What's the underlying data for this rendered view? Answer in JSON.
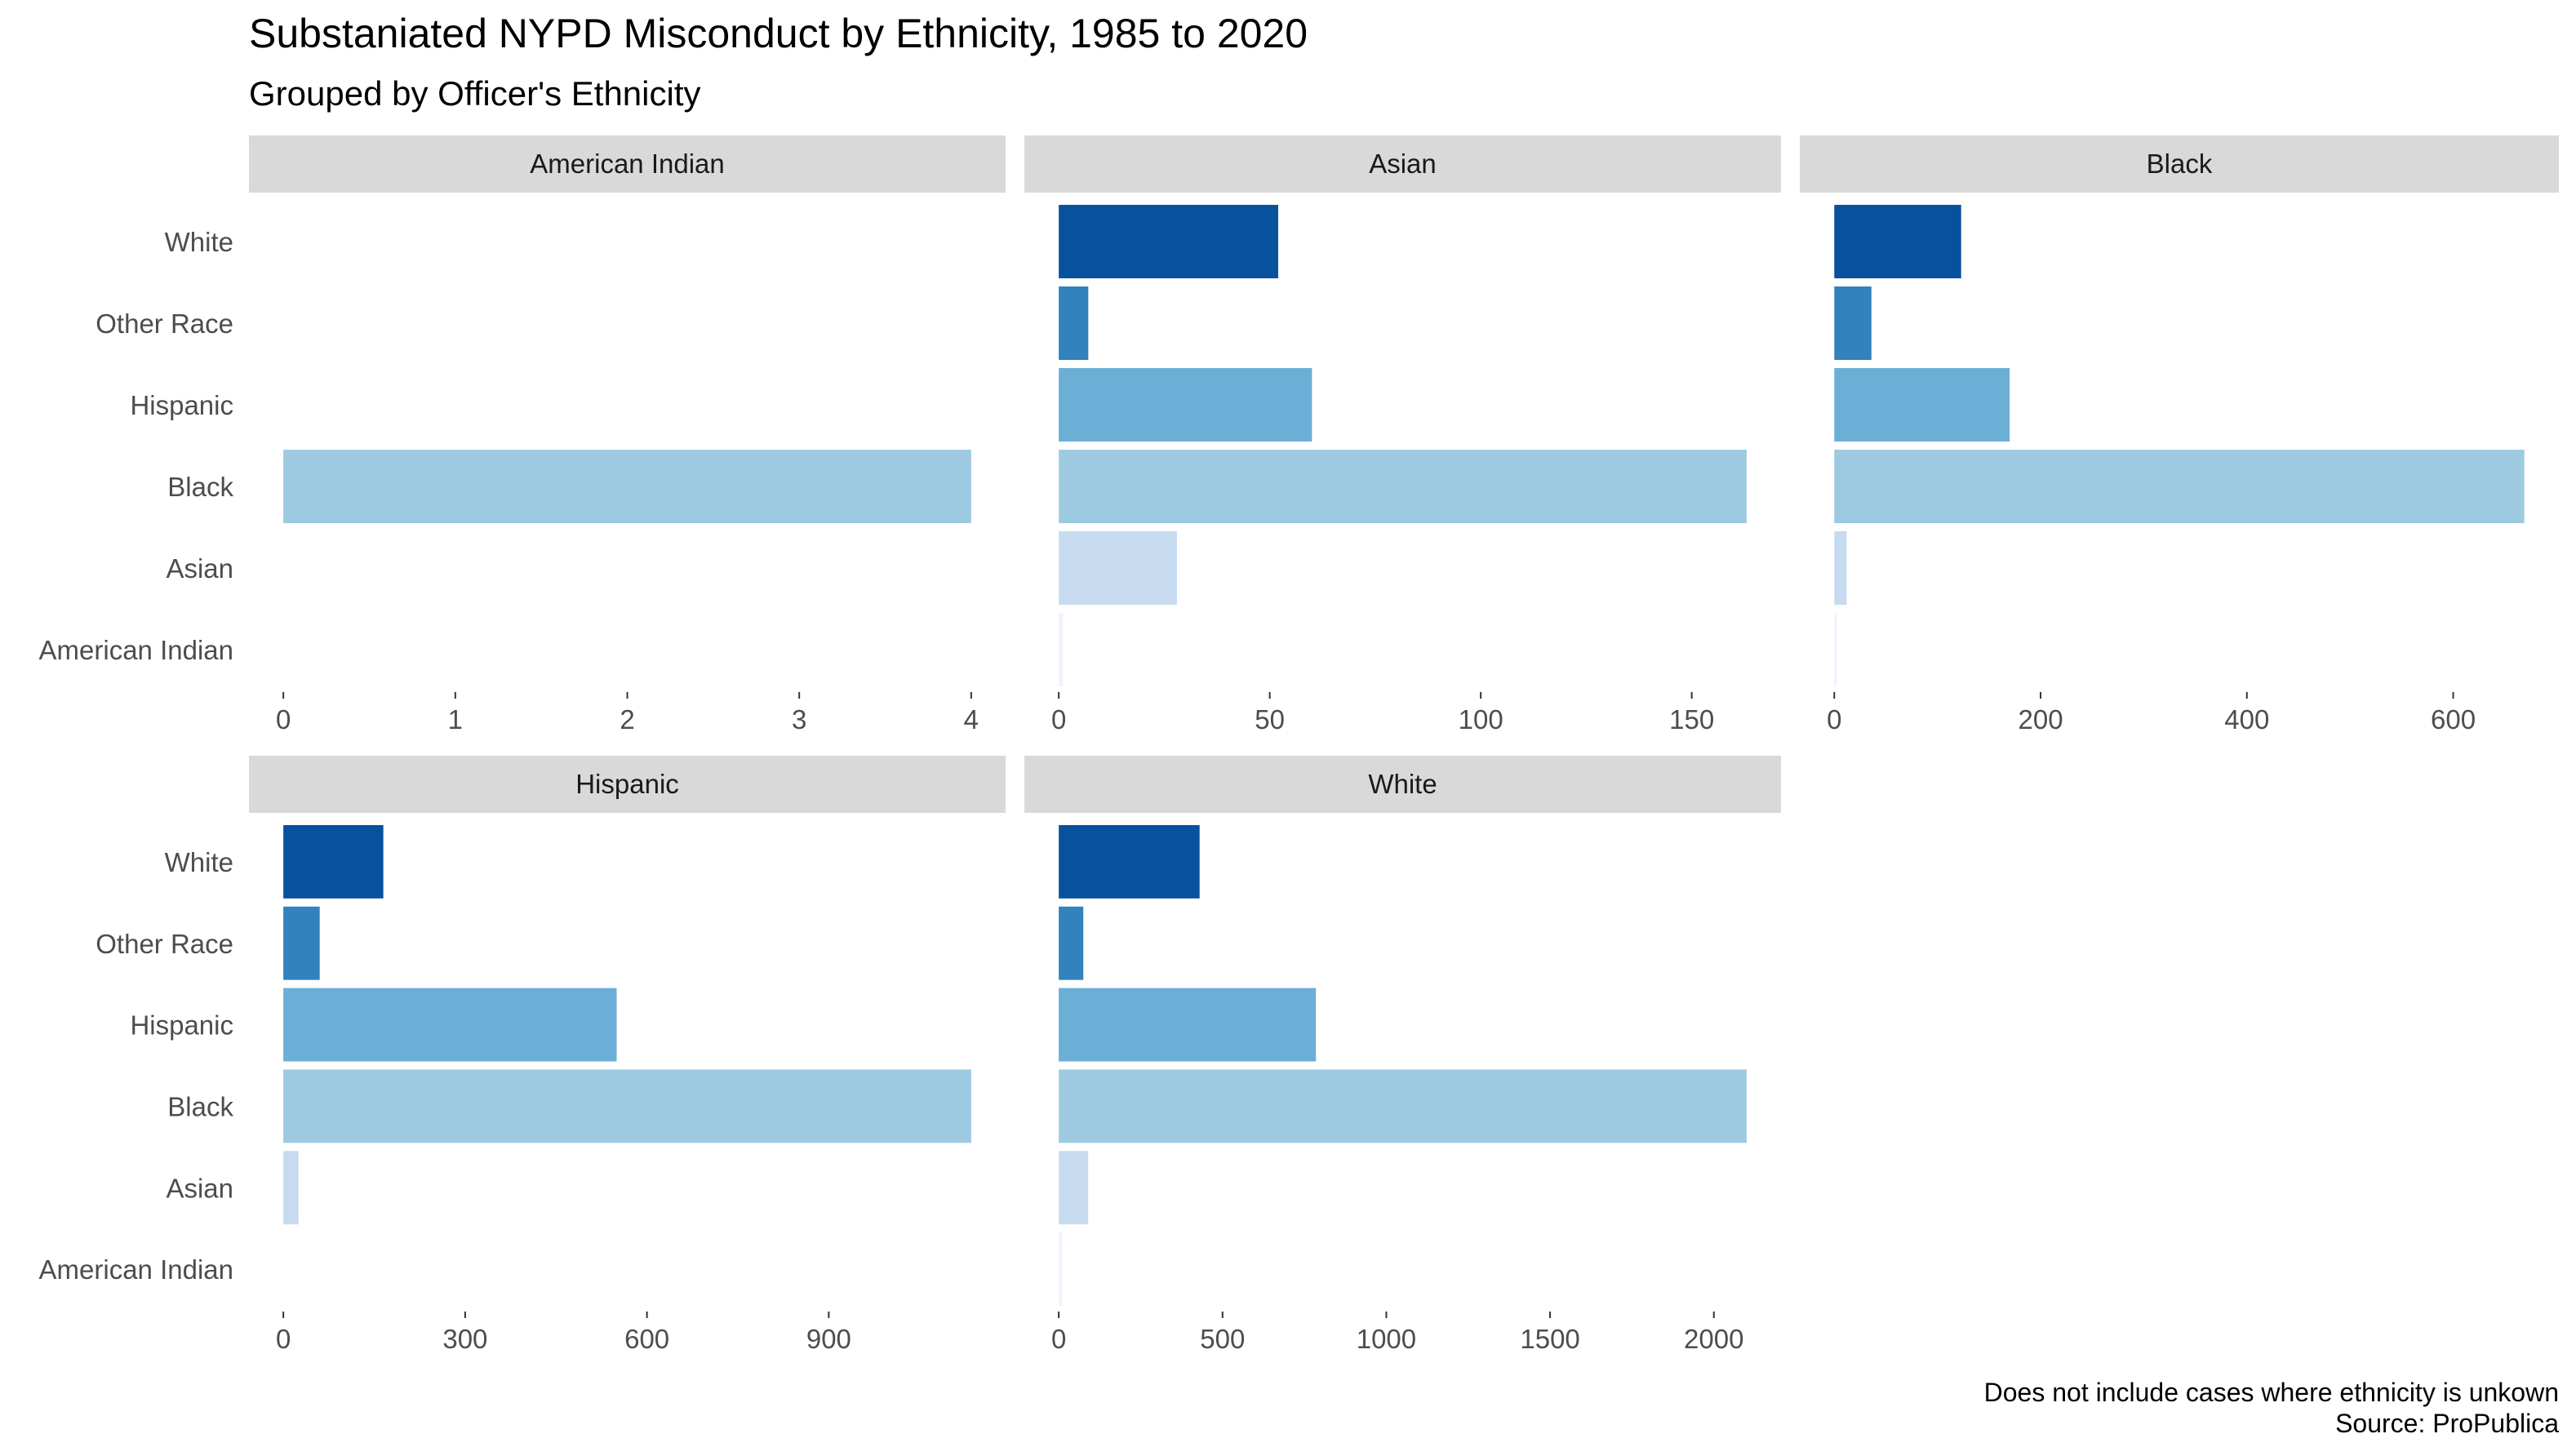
{
  "chart_data": {
    "type": "bar",
    "orientation": "horizontal",
    "title": "Substaniated NYPD Misconduct by Ethnicity, 1985 to 2020",
    "subtitle": "Grouped by Officer's Ethnicity",
    "caption_lines": [
      "Does not include cases where ethnicity is unkown",
      "Source: ProPublica"
    ],
    "categories": [
      "White",
      "Other Race",
      "Hispanic",
      "Black",
      "Asian",
      "American Indian"
    ],
    "category_colors": {
      "White": "#08519c",
      "Other Race": "#3182bd",
      "Hispanic": "#6baed6",
      "Black": "#9ecae1",
      "Asian": "#c6dbef",
      "American Indian": "#eff3ff"
    },
    "grid": false,
    "facets": [
      {
        "label": "American Indian",
        "values": {
          "White": 0,
          "Other Race": 0,
          "Hispanic": 0,
          "Black": 4,
          "Asian": 0,
          "American Indian": 0
        },
        "xlim": [
          -0.2,
          4.2
        ],
        "ticks": [
          0,
          1,
          2,
          3,
          4
        ],
        "tick_labels": [
          "0",
          "1",
          "2",
          "3",
          "4"
        ]
      },
      {
        "label": "Asian",
        "values": {
          "White": 52,
          "Other Race": 7,
          "Hispanic": 60,
          "Black": 163,
          "Asian": 28,
          "American Indian": 1
        },
        "xlim": [
          -8.15,
          171.15
        ],
        "ticks": [
          0,
          50,
          100,
          150
        ],
        "tick_labels": [
          "0",
          "50",
          "100",
          "150"
        ]
      },
      {
        "label": "Black",
        "values": {
          "White": 123,
          "Other Race": 36,
          "Hispanic": 170,
          "Black": 669,
          "Asian": 12,
          "American Indian": 1
        },
        "xlim": [
          -33.45,
          702.45
        ],
        "ticks": [
          0,
          200,
          400,
          600
        ],
        "tick_labels": [
          "0",
          "200",
          "400",
          "600"
        ]
      },
      {
        "label": "Hispanic",
        "values": {
          "White": 165,
          "Other Race": 60,
          "Hispanic": 550,
          "Black": 1135,
          "Asian": 25,
          "American Indian": 0
        },
        "xlim": [
          -56.75,
          1191.75
        ],
        "ticks": [
          0,
          300,
          600,
          900
        ],
        "tick_labels": [
          "0",
          "300",
          "600",
          "900"
        ]
      },
      {
        "label": "White",
        "values": {
          "White": 430,
          "Other Race": 75,
          "Hispanic": 785,
          "Black": 2100,
          "Asian": 90,
          "American Indian": 10
        },
        "xlim": [
          -105,
          2205
        ],
        "ticks": [
          0,
          500,
          1000,
          1500,
          2000
        ],
        "tick_labels": [
          "0",
          "500",
          "1000",
          "1500",
          "2000"
        ]
      }
    ]
  }
}
